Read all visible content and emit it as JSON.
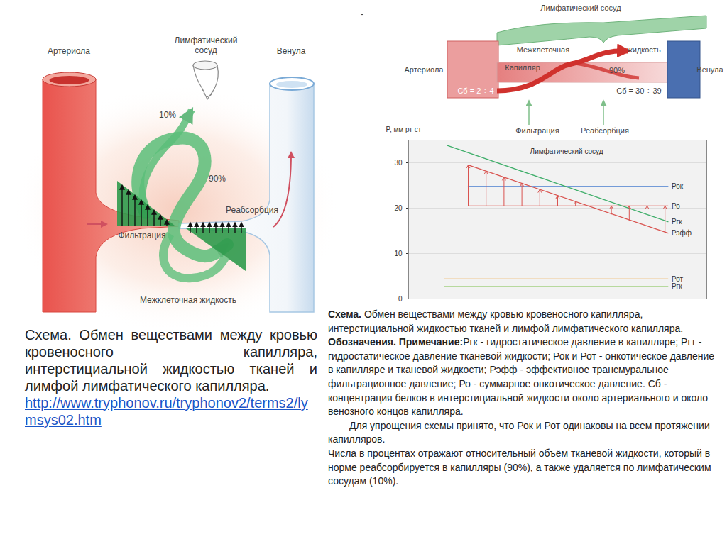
{
  "left_diagram": {
    "arteriole": "Артериола",
    "lymph_vessel": [
      "Лимфатический",
      "сосуд"
    ],
    "venule": "Венула",
    "lymph_share": "10%",
    "reabsorbed_share": "90%",
    "reabsorption": "Реабсорбция",
    "filtration": "Фильтрация",
    "interstitial": "Межклеточная жидкость"
  },
  "left_caption": {
    "text": "Схема. Обмен веществами между кровью кровеносного капилляра, интерстициальной жидкостью тканей и лимфой лимфатического капилляра.",
    "link": "http://www.tryphonov.ru/tryphonov2/terms2/lymsys02.htm"
  },
  "top_right_diagram": {
    "mark": "-",
    "lymph_vessel": "Лимфатический сосуд",
    "interstitial": [
      "Межклеточная",
      "жидкость"
    ],
    "arteriole": "Артериола",
    "capillary": "Капилляр",
    "reabsorbed_share": "90%",
    "venule": "Венула",
    "protein_arterial": "Сб = 2 ÷ 4",
    "protein_venous": "Сб = 30 ÷ 39",
    "filtration": "Фильтрация",
    "reabsorption": "Реабсорбция"
  },
  "chart_data": {
    "type": "line",
    "y_label": "P, мм рт ст",
    "annotation": {
      "text": "Лимфатический сосуд",
      "x": 53,
      "y": 32.5
    },
    "xlim": [
      0,
      100
    ],
    "ylim": [
      0,
      35
    ],
    "yticks": [
      0,
      10,
      20,
      30
    ],
    "tick_labels": "y",
    "series": [
      {
        "name": "Рок",
        "color": "#4a7fd0",
        "x": [
          20,
          87
        ],
        "values": [
          24.8,
          24.8
        ]
      },
      {
        "name": "Ро",
        "color": "#e0463c",
        "x": [
          20,
          87
        ],
        "values": [
          20.5,
          20.5
        ]
      },
      {
        "name": "Ргк",
        "color": "#3fae6a",
        "x": [
          13,
          87
        ],
        "values": [
          33.8,
          17
        ]
      },
      {
        "name": "Рэфф",
        "color": "#d9534f",
        "x": [
          20,
          87
        ],
        "values": [
          29.5,
          14.5
        ]
      },
      {
        "name": "Рот",
        "color": "#f0a030",
        "x": [
          12,
          87
        ],
        "values": [
          4.4,
          4.4
        ]
      },
      {
        "name": "Ргк",
        "color": "#7cc04a",
        "x": [
          12,
          87
        ],
        "values": [
          2.7,
          2.7
        ]
      }
    ],
    "arrows": {
      "color": "#d9534f",
      "x": [
        20,
        26,
        32,
        38,
        44,
        50,
        56,
        68,
        74,
        80,
        86
      ],
      "from": [
        20.5,
        20.5,
        20.5,
        20.5,
        20.5,
        20.5,
        20.5,
        18.7,
        17.3,
        16.0,
        14.7
      ],
      "to": [
        29.5,
        28.2,
        26.8,
        25.5,
        24.1,
        22.8,
        21.4,
        20.5,
        20.5,
        20.5,
        20.5
      ]
    }
  },
  "right_caption": {
    "title": "Схема.",
    "text": "Обмен веществами между кровью кровеносного капилляра, интерстициальной жидкостью тканей и лимфой лимфатического капилляра.",
    "notes_title": "Обозначения. Примечание:",
    "notes": "Ргк - гидростатическое давление в капилляре; Ргт - гидростатическое давление тканевой жидкости; Рок и Рот - онкотическое давление в капилляре и тканевой жидкости; Рэфф - эффективное трансмуральное фильтрационное давление; Ро - суммарное онкотическое давление. Сб - концентрация белков в интерстициальной жидкости около артериального и около венозного концов капилляра.",
    "paragraphs": [
      "Для упрощения схемы принято, что Рок и Рот одинаковы на всем протяжении капилляров.",
      "Числа в процентах отражают относительный объём тканевой жидкости, который в норме реабсорбируется в капилляры (90%), а также удаляется по лимфатическим сосудам (10%)."
    ]
  }
}
